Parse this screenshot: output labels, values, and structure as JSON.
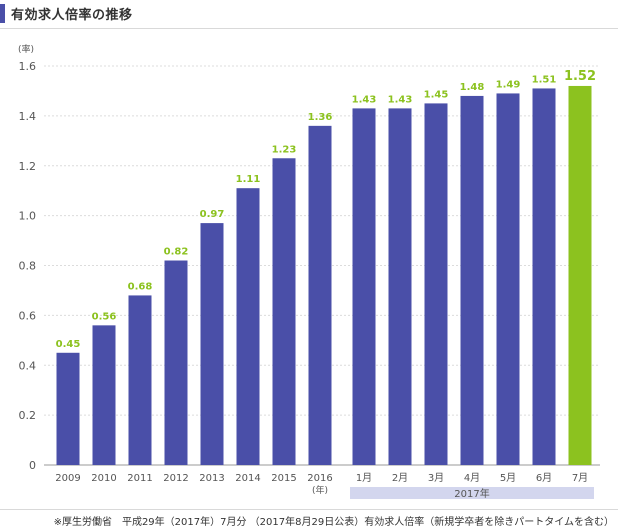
{
  "title": "有効求人倍率の推移",
  "footnote": "※厚生労働省　平成29年（2017年）7月分 （2017年8月29日公表）有効求人倍率（新規学卒者を除きパートタイムを含む）",
  "colors": {
    "bar": "#4a4fa8",
    "highlight_bar": "#8cc21f",
    "label": "#8cc21f",
    "grid": "#dcdcdc",
    "year_band": "#d3d6ee",
    "title_accent": "#4a4fa8"
  },
  "chart_data": {
    "type": "bar",
    "ylabel": "(率)",
    "ylim": [
      0,
      1.6
    ],
    "yticks": [
      "0",
      "0.2",
      "0.4",
      "0.6",
      "0.8",
      "1.0",
      "1.2",
      "1.4",
      "1.6"
    ],
    "ytick_values": [
      0,
      0.2,
      0.4,
      0.6,
      0.8,
      1.0,
      1.2,
      1.4,
      1.6
    ],
    "grid": true,
    "categories": [
      "2009",
      "2010",
      "2011",
      "2012",
      "2013",
      "2014",
      "2015",
      "2016",
      "1月",
      "2月",
      "3月",
      "4月",
      "5月",
      "6月",
      "7月"
    ],
    "values": [
      0.45,
      0.56,
      0.68,
      0.82,
      0.97,
      1.11,
      1.23,
      1.36,
      1.43,
      1.43,
      1.45,
      1.48,
      1.49,
      1.51,
      1.52
    ],
    "value_labels": [
      "0.45",
      "0.56",
      "0.68",
      "0.82",
      "0.97",
      "1.11",
      "1.23",
      "1.36",
      "1.43",
      "1.43",
      "1.45",
      "1.48",
      "1.49",
      "1.51",
      "1.52"
    ],
    "highlight_index": 14,
    "year_axis_unit": "(年)",
    "month_group_label": "2017年"
  }
}
